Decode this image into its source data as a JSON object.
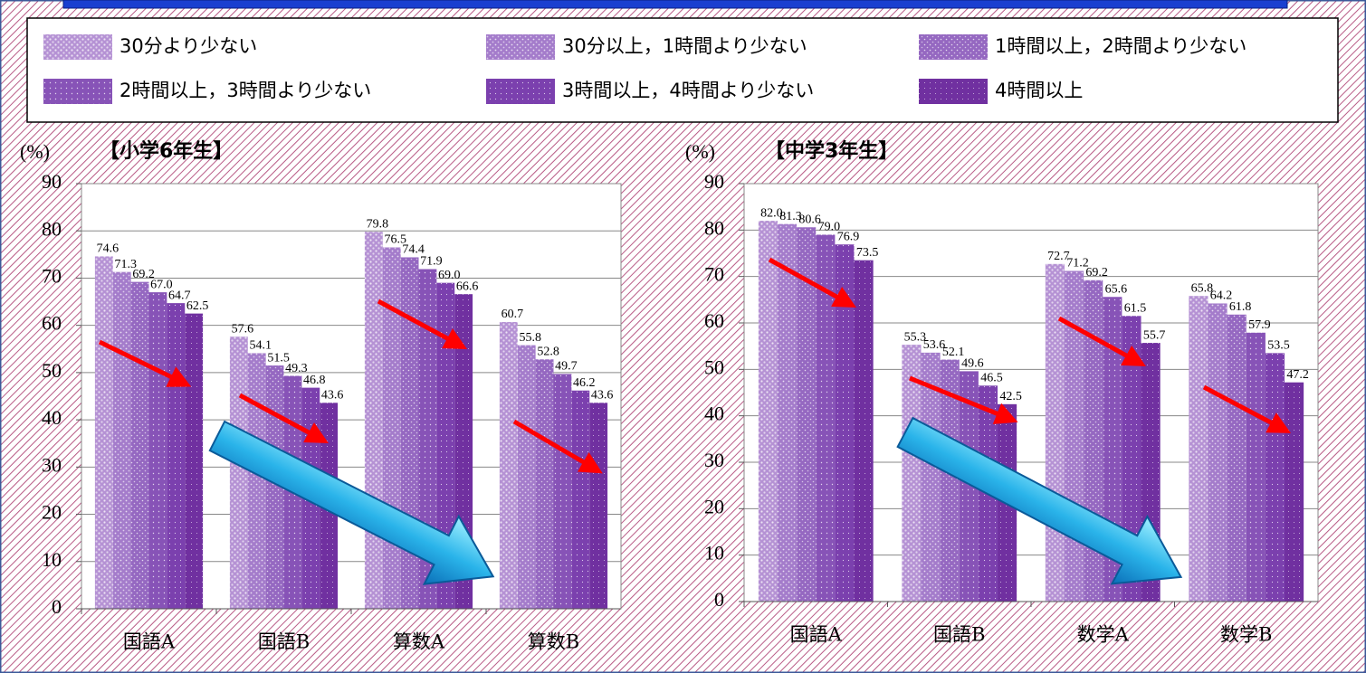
{
  "chart_data": [
    {
      "type": "bar",
      "title": "【小学6年生】",
      "y_label": "(%)",
      "categories": [
        "国語A",
        "国語B",
        "算数A",
        "算数B"
      ],
      "ylim": [
        0,
        90
      ],
      "yticks": [
        0,
        10,
        20,
        30,
        40,
        50,
        60,
        70,
        80,
        90
      ],
      "grid": true,
      "series": [
        {
          "name": "30分より少ない",
          "color": "#b592d4",
          "values": [
            74.6,
            57.6,
            79.8,
            60.7
          ],
          "value_labels": [
            "74.6",
            "57.6",
            "79.8",
            "60.7"
          ]
        },
        {
          "name": "30分以上，1時間より少ない",
          "color": "#a47ccb",
          "values": [
            71.3,
            54.1,
            76.5,
            55.8
          ],
          "value_labels": [
            "71.3",
            "54.1",
            "76.5",
            "55.8"
          ]
        },
        {
          "name": "1時間以上，2時間より少ない",
          "color": "#9568c1",
          "values": [
            69.2,
            51.5,
            74.4,
            52.8
          ],
          "value_labels": [
            "69.2",
            "51.5",
            "74.4",
            "52.8"
          ]
        },
        {
          "name": "2時間以上，3時間より少ない",
          "color": "#8753b7",
          "values": [
            67.0,
            49.3,
            71.9,
            49.7
          ],
          "value_labels": [
            "67.0",
            "49.3",
            "71.9",
            "49.7"
          ]
        },
        {
          "name": "3時間以上，4時間より少ない",
          "color": "#7b40ae",
          "values": [
            64.7,
            46.8,
            69.0,
            46.2
          ],
          "value_labels": [
            "64.7",
            "46.8",
            "69.0",
            "46.2"
          ]
        },
        {
          "name": "4時間以上",
          "color": "#7030a0",
          "values": [
            62.5,
            43.6,
            66.6,
            43.6
          ],
          "value_labels": [
            "62.5",
            "43.6",
            "66.6",
            "43.6"
          ]
        }
      ]
    },
    {
      "type": "bar",
      "title": "【中学3年生】",
      "y_label": "(%)",
      "categories": [
        "国語A",
        "国語B",
        "数学A",
        "数学B"
      ],
      "ylim": [
        0,
        90
      ],
      "yticks": [
        0,
        10,
        20,
        30,
        40,
        50,
        60,
        70,
        80,
        90
      ],
      "grid": true,
      "series": [
        {
          "color": "#b592d4",
          "values": [
            82.0,
            55.3,
            72.7,
            65.8
          ],
          "value_labels": [
            "82.0",
            "55.3",
            "72.7",
            "65.8"
          ]
        },
        {
          "color": "#a47ccb",
          "values": [
            81.3,
            53.6,
            71.2,
            64.2
          ],
          "value_labels": [
            "81.3",
            "53.6",
            "71.2",
            "64.2"
          ]
        },
        {
          "color": "#9568c1",
          "values": [
            80.6,
            52.1,
            69.2,
            61.8
          ],
          "value_labels": [
            "80.6",
            "52.1",
            "69.2",
            "61.8"
          ]
        },
        {
          "color": "#8753b7",
          "values": [
            79.0,
            49.6,
            65.6,
            57.9
          ],
          "value_labels": [
            "79.0",
            "49.6",
            "65.6",
            "57.9"
          ]
        },
        {
          "color": "#7b40ae",
          "values": [
            76.9,
            46.5,
            61.5,
            53.5
          ],
          "value_labels": [
            "76.9",
            "46.5",
            "61.5",
            "53.5"
          ]
        },
        {
          "color": "#7030a0",
          "values": [
            73.5,
            42.5,
            55.7,
            47.2
          ],
          "value_labels": [
            "73.5",
            "42.5",
            "55.7",
            "47.2"
          ]
        }
      ]
    }
  ]
}
